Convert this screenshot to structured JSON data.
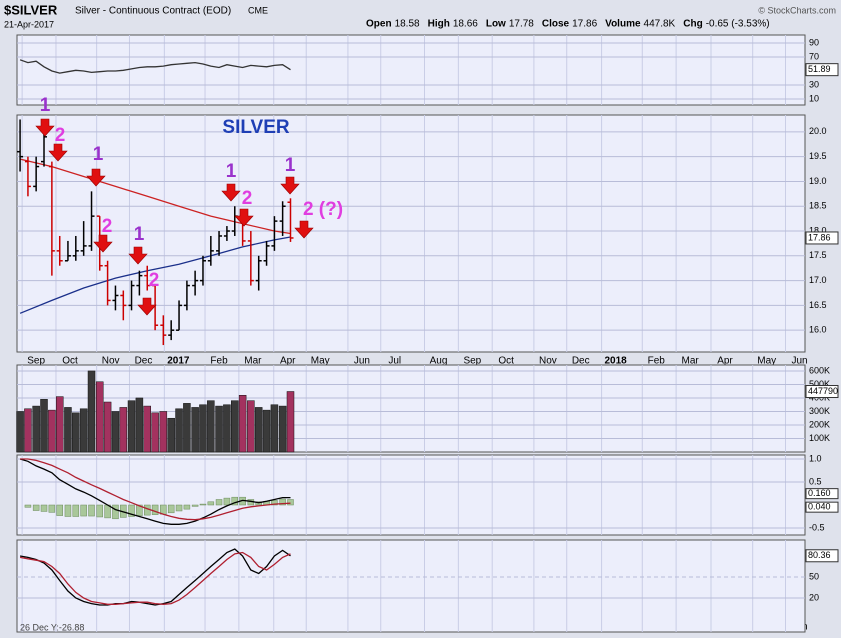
{
  "header": {
    "symbol": "$SILVER",
    "name": "Silver - Continuous Contract (EOD)",
    "exchange": "CME",
    "date": "21-Apr-2017",
    "quote": [
      {
        "label": "Open",
        "value": 18.58
      },
      {
        "label": "High",
        "value": 18.66
      },
      {
        "label": "Low",
        "value": 17.78
      },
      {
        "label": "Close",
        "value": 17.86
      },
      {
        "label": "Volume",
        "value": "447.8K"
      },
      {
        "label": "Chg",
        "value": "-0.65 (-3.53%)"
      }
    ],
    "copyright": "© StockCharts.com",
    "cursor": "26 Dec Y:-26.88"
  },
  "annotations": [
    {
      "text": "SILVER",
      "color": "#1f3fb5"
    },
    {
      "text": "1",
      "color": "#9a32cc"
    },
    {
      "text": "2",
      "color": "#e03ee0"
    },
    {
      "text": "1",
      "color": "#9a32cc"
    },
    {
      "text": "2",
      "color": "#e03ee0"
    },
    {
      "text": "1",
      "color": "#9a32cc"
    },
    {
      "text": "2",
      "color": "#e03ee0"
    },
    {
      "text": "1",
      "color": "#9a32cc"
    },
    {
      "text": "2",
      "color": "#e03ee0"
    },
    {
      "text": "1",
      "color": "#9a32cc"
    },
    {
      "text": "2 (?)",
      "color": "#e03ee0"
    }
  ],
  "chart_data": [
    {
      "type": "line",
      "color": "#333333",
      "ylim": [
        1.4,
        101.4
      ],
      "yticks": [
        10,
        30,
        70,
        90
      ],
      "values": [
        66,
        62,
        64,
        56,
        50,
        47,
        49,
        51,
        50,
        48,
        49,
        50,
        50,
        51,
        53,
        55,
        56,
        56,
        57,
        59,
        60,
        61,
        62,
        60,
        57,
        55,
        59,
        57,
        55,
        58,
        57,
        56,
        58,
        59,
        51.89
      ]
    },
    {
      "type": "ohlc",
      "up_color": "#000000",
      "down_color": "#cc0000",
      "xlim": [
        -0.15,
        22.9
      ],
      "xticks": [
        {
          "value": 0,
          "label": "Sep"
        },
        {
          "value": 0.99,
          "label": "Oct"
        },
        {
          "value": 2.18,
          "label": "Nov"
        },
        {
          "value": 3.14,
          "label": "Dec"
        },
        {
          "value": 4.16,
          "label": "2017"
        },
        {
          "value": 5.35,
          "label": "Feb"
        },
        {
          "value": 6.34,
          "label": "Mar"
        },
        {
          "value": 7.36,
          "label": "Apr"
        },
        {
          "value": 8.31,
          "label": "May"
        },
        {
          "value": 9.53,
          "label": "Jun"
        },
        {
          "value": 10.49,
          "label": "Jul"
        },
        {
          "value": 11.77,
          "label": "Aug"
        },
        {
          "value": 12.76,
          "label": "Sep"
        },
        {
          "value": 13.75,
          "label": "Oct"
        },
        {
          "value": 14.97,
          "label": "Nov"
        },
        {
          "value": 15.93,
          "label": "Dec"
        },
        {
          "value": 16.95,
          "label": "2018"
        },
        {
          "value": 18.14,
          "label": "Feb"
        },
        {
          "value": 19.13,
          "label": "Mar"
        },
        {
          "value": 20.15,
          "label": "Apr"
        },
        {
          "value": 21.37,
          "label": "May"
        },
        {
          "value": 22.33,
          "label": "Jun"
        }
      ],
      "ylim": [
        15.56,
        20.34
      ],
      "yticks": [
        {
          "value": 16,
          "label": "16.0"
        },
        {
          "value": 16.5,
          "label": "16.5"
        },
        {
          "value": 17,
          "label": "17.0"
        },
        {
          "value": 17.5,
          "label": "17.5"
        },
        {
          "value": 18,
          "label": "18.0"
        },
        {
          "value": 18.5,
          "label": "18.5"
        },
        {
          "value": 19,
          "label": "19.0"
        },
        {
          "value": 19.5,
          "label": "19.5"
        },
        {
          "value": 20,
          "label": "20.0"
        }
      ],
      "x": [
        -0.06,
        0.17,
        0.41,
        0.64,
        0.87,
        1.1,
        1.34,
        1.57,
        1.8,
        2.03,
        2.27,
        2.5,
        2.73,
        2.96,
        3.2,
        3.43,
        3.66,
        3.89,
        4.13,
        4.36,
        4.59,
        4.82,
        5.06,
        5.29,
        5.52,
        5.76,
        5.99,
        6.22,
        6.45,
        6.69,
        6.92,
        7.15,
        7.38,
        7.62,
        7.85
      ],
      "open": [
        19.6,
        19.4,
        18.9,
        19.4,
        19.3,
        17.6,
        17.4,
        17.5,
        17.6,
        17.7,
        18.3,
        17.3,
        16.6,
        16.7,
        16.5,
        16.9,
        17.1,
        16.9,
        16.1,
        15.9,
        16.0,
        16.5,
        16.9,
        17.0,
        17.4,
        17.6,
        17.9,
        18.0,
        18.3,
        17.8,
        17.0,
        17.4,
        17.7,
        18.2,
        18.58
      ],
      "high": [
        20.25,
        19.5,
        19.5,
        20.1,
        19.4,
        17.9,
        17.8,
        17.9,
        18.2,
        18.8,
        18.3,
        17.4,
        16.9,
        16.8,
        17.0,
        17.2,
        17.3,
        16.9,
        16.3,
        16.2,
        16.6,
        17.0,
        17.2,
        17.5,
        17.9,
        18.0,
        18.1,
        18.5,
        18.4,
        18.0,
        17.5,
        17.8,
        18.3,
        18.6,
        18.66
      ],
      "low": [
        19.2,
        18.7,
        18.8,
        19.3,
        17.1,
        17.3,
        17.4,
        17.4,
        17.5,
        17.6,
        17.2,
        16.5,
        16.4,
        16.2,
        16.4,
        16.7,
        16.8,
        16.0,
        15.7,
        15.8,
        16.0,
        16.4,
        16.7,
        16.9,
        17.3,
        17.5,
        17.8,
        17.9,
        17.7,
        16.9,
        16.8,
        17.3,
        17.6,
        17.9,
        17.78
      ],
      "close": [
        19.5,
        18.9,
        19.3,
        19.9,
        17.6,
        17.4,
        17.5,
        17.6,
        17.7,
        18.3,
        17.3,
        16.6,
        16.7,
        16.5,
        16.9,
        17.1,
        16.9,
        16.1,
        15.9,
        16.0,
        16.5,
        16.9,
        17.0,
        17.4,
        17.6,
        17.9,
        18.0,
        18.3,
        17.8,
        17.0,
        17.4,
        17.7,
        18.2,
        18.5,
        17.86
      ],
      "overlays": [
        {
          "color": "#cc2222",
          "x": [
            -0.06,
            0.87,
            1.8,
            2.73,
            3.66,
            4.59,
            5.52,
            6.45,
            7.38,
            7.85
          ],
          "values": [
            19.45,
            19.3,
            19.1,
            18.9,
            18.7,
            18.5,
            18.3,
            18.15,
            18.0,
            17.95
          ]
        },
        {
          "color": "#1a2f8a",
          "x": [
            -0.06,
            0.87,
            1.8,
            2.73,
            3.66,
            4.59,
            5.52,
            6.45,
            7.38,
            7.85
          ],
          "values": [
            16.34,
            16.6,
            16.85,
            17.05,
            17.2,
            17.33,
            17.5,
            17.68,
            17.82,
            17.88
          ]
        }
      ]
    },
    {
      "type": "bar",
      "up_color": "#3a3a3a",
      "down_color": "#a3325f",
      "ylim": [
        0,
        644000
      ],
      "yticks": [
        {
          "value": 100000,
          "label": "100K"
        },
        {
          "value": 200000,
          "label": "200K"
        },
        {
          "value": 300000,
          "label": "300K"
        },
        {
          "value": 400000,
          "label": "400K"
        },
        {
          "value": 500000,
          "label": "500K"
        },
        {
          "value": 600000,
          "label": "600K"
        }
      ],
      "values": [
        300000,
        320000,
        340000,
        390000,
        310000,
        410000,
        330000,
        290000,
        320000,
        600000,
        520000,
        370000,
        300000,
        330000,
        380000,
        400000,
        340000,
        290000,
        300000,
        250000,
        320000,
        360000,
        330000,
        350000,
        380000,
        340000,
        350000,
        380000,
        420000,
        380000,
        330000,
        310000,
        350000,
        340000,
        447790
      ]
    },
    {
      "type": "macd",
      "ylim": [
        -0.652,
        1.087
      ],
      "yticks": [
        {
          "value": 1,
          "label": "1.0"
        },
        0.5,
        -0.5
      ],
      "last_labels": [
        "0.160",
        "0.040"
      ],
      "series": [
        {
          "color": "#000000",
          "values": [
            1.0,
            0.95,
            0.85,
            0.78,
            0.7,
            0.55,
            0.45,
            0.35,
            0.28,
            0.2,
            0.1,
            0.0,
            -0.1,
            -0.15,
            -0.2,
            -0.25,
            -0.3,
            -0.35,
            -0.4,
            -0.42,
            -0.42,
            -0.4,
            -0.35,
            -0.28,
            -0.2,
            -0.1,
            -0.02,
            0.05,
            0.1,
            0.08,
            0.05,
            0.08,
            0.12,
            0.16,
            0.16
          ]
        },
        {
          "color": "#b02030",
          "values": [
            1.0,
            1.0,
            0.97,
            0.92,
            0.86,
            0.78,
            0.7,
            0.6,
            0.52,
            0.44,
            0.36,
            0.28,
            0.2,
            0.12,
            0.05,
            -0.02,
            -0.08,
            -0.14,
            -0.2,
            -0.25,
            -0.29,
            -0.31,
            -0.32,
            -0.3,
            -0.27,
            -0.22,
            -0.17,
            -0.12,
            -0.07,
            -0.04,
            -0.02,
            0.0,
            0.02,
            0.03,
            0.04
          ]
        }
      ],
      "histogram": {
        "color": "#a9c79a",
        "values": [
          0,
          -0.05,
          -0.12,
          -0.14,
          -0.16,
          -0.23,
          -0.25,
          -0.25,
          -0.24,
          -0.24,
          -0.26,
          -0.28,
          -0.3,
          -0.27,
          -0.25,
          -0.23,
          -0.22,
          -0.21,
          -0.2,
          -0.17,
          -0.13,
          -0.09,
          -0.03,
          0.02,
          0.07,
          0.12,
          0.15,
          0.17,
          0.17,
          0.12,
          0.07,
          0.08,
          0.1,
          0.13,
          0.12
        ]
      }
    },
    {
      "type": "stoch",
      "ylim": [
        -28.6,
        102.9
      ],
      "yticks": [
        20,
        50
      ],
      "series": [
        {
          "color": "#000000",
          "values": [
            80,
            78,
            75,
            70,
            60,
            45,
            30,
            20,
            15,
            12,
            10,
            10,
            12,
            12,
            15,
            14,
            12,
            10,
            12,
            15,
            25,
            35,
            45,
            55,
            65,
            75,
            85,
            90,
            80,
            60,
            55,
            65,
            80,
            88,
            80.36
          ]
        },
        {
          "color": "#b02030",
          "values": [
            78,
            76,
            74,
            72,
            65,
            55,
            40,
            28,
            20,
            15,
            13,
            11,
            11,
            12,
            13,
            14,
            14,
            12,
            11,
            12,
            17,
            25,
            35,
            45,
            55,
            65,
            75,
            83,
            85,
            78,
            65,
            60,
            68,
            78,
            83
          ]
        }
      ]
    }
  ]
}
